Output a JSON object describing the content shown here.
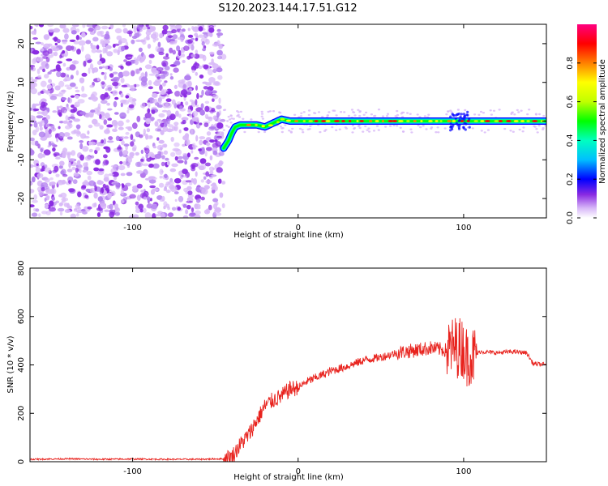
{
  "figure_title": "S120.2023.144.17.51.G12",
  "colors": {
    "snr_line": "#e8231e",
    "noise_dots": "#8a2be2",
    "noise_light": "#d8b8f8",
    "axis": "#000000",
    "background": "#ffffff"
  },
  "chart_data": [
    {
      "type": "heatmap",
      "title": "",
      "xlabel": "Height of straight line (km)",
      "ylabel": "Frequency (Hz)",
      "xlim": [
        -162,
        150
      ],
      "ylim": [
        -25,
        25
      ],
      "xticks": [
        -100,
        0,
        100
      ],
      "yticks": [
        -20,
        -10,
        0,
        10,
        20
      ],
      "colorbar": {
        "label": "Normalized spectral amplitude",
        "range": [
          0,
          1
        ],
        "ticks": [
          0.0,
          0.2,
          0.4,
          0.6,
          0.8
        ],
        "colormap": "rainbow"
      },
      "noise_region_x": [
        -162,
        -45
      ],
      "signal_frequency_track": {
        "x": [
          -45,
          -42,
          -40,
          -38,
          -35,
          -30,
          -25,
          -20,
          -15,
          -10,
          -5,
          0,
          20,
          50,
          100,
          150
        ],
        "y": [
          -7,
          -5,
          -3,
          -1.5,
          -1,
          -1,
          -1,
          -1.5,
          -0.5,
          0.5,
          0,
          0,
          0,
          0,
          0,
          0
        ]
      }
    },
    {
      "type": "line",
      "title": "",
      "xlabel": "Height of straight line (km)",
      "ylabel": "SNR (10 * v/v)",
      "xlim": [
        -162,
        150
      ],
      "ylim": [
        0,
        800
      ],
      "xticks": [
        -100,
        0,
        100
      ],
      "yticks": [
        0,
        200,
        400,
        600,
        800
      ],
      "series": [
        {
          "x": [
            -162,
            -140,
            -120,
            -100,
            -80,
            -60,
            -45,
            -40,
            -35,
            -30,
            -25,
            -20,
            -15,
            -10,
            -5,
            0,
            5,
            10,
            20,
            30,
            40,
            50,
            60,
            70,
            80,
            85,
            90,
            95,
            100,
            102,
            104,
            105,
            110,
            120,
            130,
            138,
            142,
            150
          ],
          "y": [
            10,
            12,
            10,
            11,
            10,
            10,
            12,
            20,
            70,
            110,
            170,
            230,
            255,
            270,
            300,
            305,
            330,
            345,
            375,
            395,
            420,
            432,
            450,
            460,
            470,
            465,
            460,
            475,
            470,
            430,
            450,
            430,
            455,
            450,
            455,
            450,
            405,
            400
          ]
        }
      ]
    }
  ]
}
